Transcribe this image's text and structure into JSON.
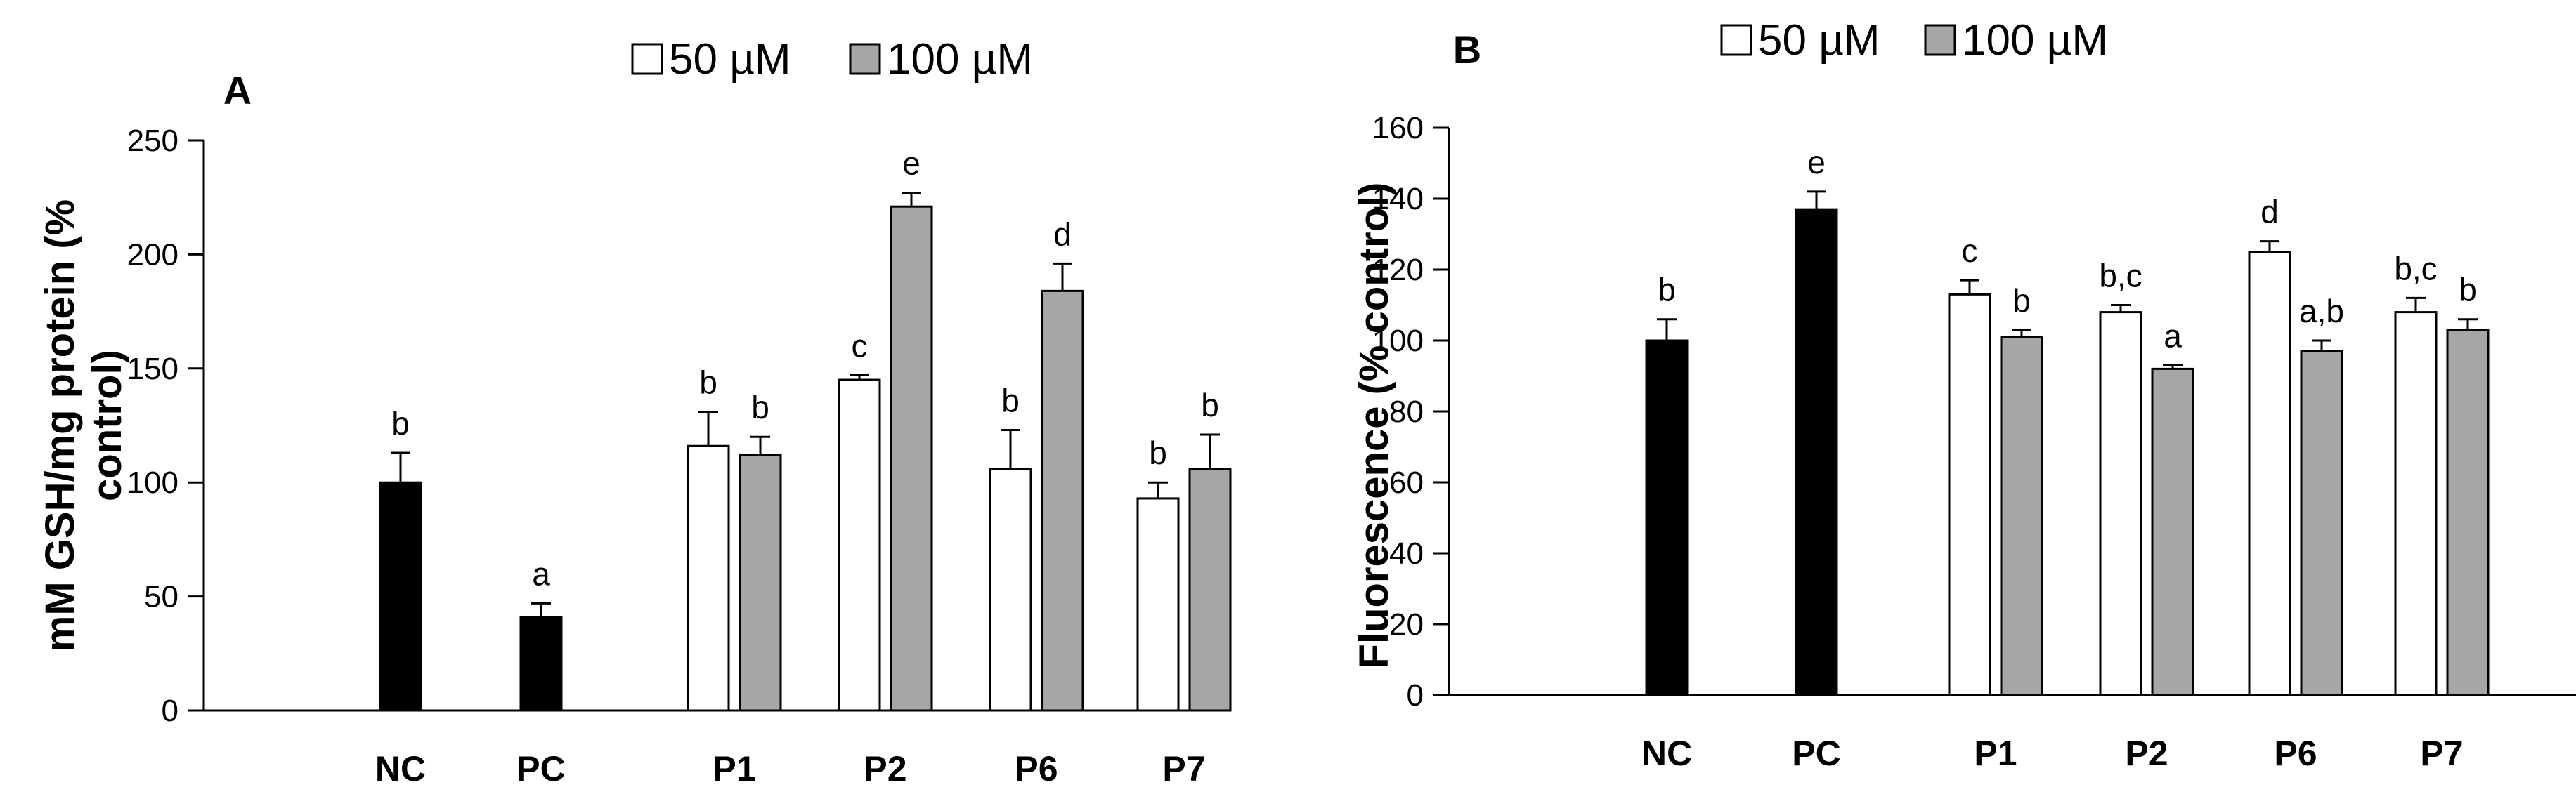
{
  "chart_data": [
    {
      "panel": "A",
      "type": "bar",
      "ylabel_lines": [
        "mM GSH/mg protein (%",
        "control)"
      ],
      "ylim": [
        0,
        250
      ],
      "yticks": [
        0,
        50,
        100,
        150,
        200,
        250
      ],
      "groups": [
        {
          "label": "NC",
          "bars": [
            {
              "series": "control",
              "value": 100,
              "err": 13,
              "sig": "b"
            }
          ]
        },
        {
          "label": "PC",
          "bars": [
            {
              "series": "control",
              "value": 41,
              "err": 6,
              "sig": "a"
            }
          ]
        },
        {
          "label": "P1",
          "bars": [
            {
              "series": "50 µM",
              "value": 116,
              "err": 15,
              "sig": "b"
            },
            {
              "series": "100 µM",
              "value": 112,
              "err": 8,
              "sig": "b"
            }
          ]
        },
        {
          "label": "P2",
          "bars": [
            {
              "series": "50 µM",
              "value": 145,
              "err": 2,
              "sig": "c"
            },
            {
              "series": "100 µM",
              "value": 221,
              "err": 6,
              "sig": "e"
            }
          ]
        },
        {
          "label": "P6",
          "bars": [
            {
              "series": "50 µM",
              "value": 106,
              "err": 17,
              "sig": "b"
            },
            {
              "series": "100 µM",
              "value": 184,
              "err": 12,
              "sig": "d"
            }
          ]
        },
        {
          "label": "P7",
          "bars": [
            {
              "series": "50 µM",
              "value": 93,
              "err": 7,
              "sig": "b"
            },
            {
              "series": "100 µM",
              "value": 106,
              "err": 15,
              "sig": "b"
            }
          ]
        }
      ],
      "legend": [
        {
          "name": "50 µM",
          "color": "#ffffff"
        },
        {
          "name": "100 µM",
          "color": "#a6a6a6"
        }
      ]
    },
    {
      "panel": "B",
      "type": "bar",
      "ylabel": "Fluorescence  (% control)",
      "ylim": [
        0,
        160
      ],
      "yticks": [
        0,
        20,
        40,
        60,
        80,
        100,
        120,
        140,
        160
      ],
      "groups": [
        {
          "label": "NC",
          "bars": [
            {
              "series": "control",
              "value": 100,
              "err": 6,
              "sig": "b"
            }
          ]
        },
        {
          "label": "PC",
          "bars": [
            {
              "series": "control",
              "value": 137,
              "err": 5,
              "sig": "e"
            }
          ]
        },
        {
          "label": "P1",
          "bars": [
            {
              "series": "50 µM",
              "value": 113,
              "err": 4,
              "sig": "c"
            },
            {
              "series": "100 µM",
              "value": 101,
              "err": 2,
              "sig": "b"
            }
          ]
        },
        {
          "label": "P2",
          "bars": [
            {
              "series": "50 µM",
              "value": 108,
              "err": 2,
              "sig": "b,c"
            },
            {
              "series": "100 µM",
              "value": 92,
              "err": 1,
              "sig": "a"
            }
          ]
        },
        {
          "label": "P6",
          "bars": [
            {
              "series": "50 µM",
              "value": 125,
              "err": 3,
              "sig": "d"
            },
            {
              "series": "100 µM",
              "value": 97,
              "err": 3,
              "sig": "a,b"
            }
          ]
        },
        {
          "label": "P7",
          "bars": [
            {
              "series": "50 µM",
              "value": 108,
              "err": 4,
              "sig": "b,c"
            },
            {
              "series": "100 µM",
              "value": 103,
              "err": 3,
              "sig": "b"
            }
          ]
        }
      ],
      "legend": [
        {
          "name": "50 µM",
          "color": "#ffffff"
        },
        {
          "name": "100 µM",
          "color": "#a6a6a6"
        }
      ]
    }
  ],
  "colors": {
    "control": "#000000",
    "50 µM": "#ffffff",
    "100 µM": "#a6a6a6",
    "outline": "#000000"
  }
}
